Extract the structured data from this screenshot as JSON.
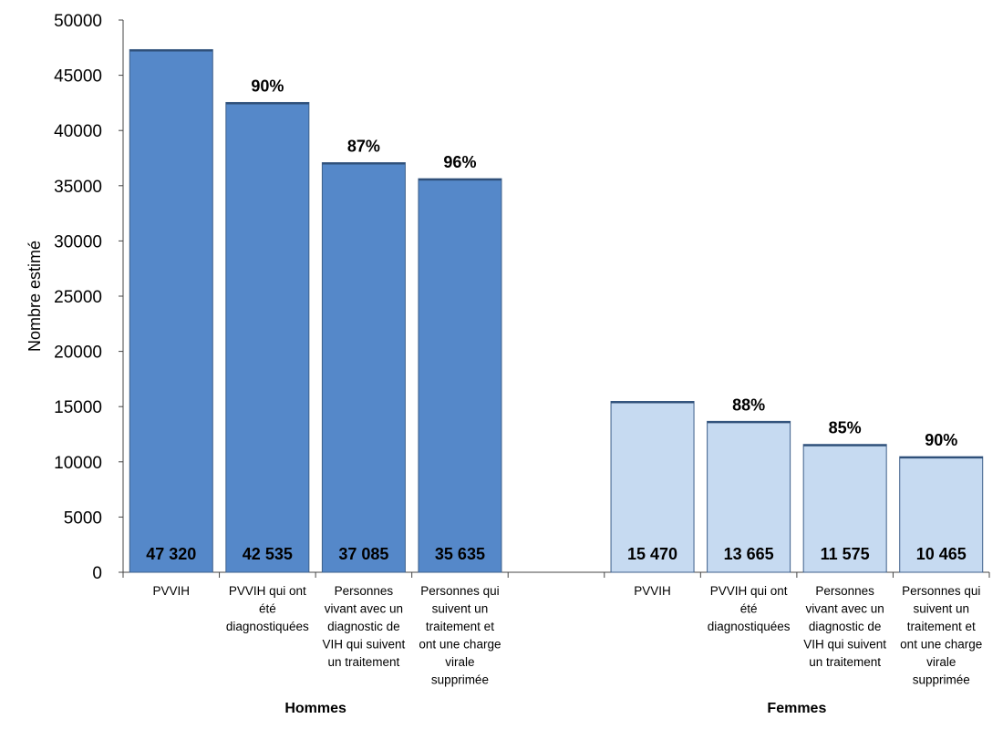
{
  "chart_data": {
    "type": "bar",
    "ylabel": "Nombre estimé",
    "ylim": [
      0,
      50000
    ],
    "yticks": [
      "0",
      "5000",
      "10000",
      "15000",
      "20000",
      "25000",
      "30000",
      "35000",
      "40000",
      "45000",
      "50000"
    ],
    "grid": false,
    "groups": [
      {
        "name": "Hommes",
        "color": "#5588c9",
        "categories": [
          [
            "PVVIH"
          ],
          [
            "PVVIH qui ont",
            "été",
            "diagnostiquées"
          ],
          [
            "Personnes",
            "vivant avec un",
            "diagnostic de",
            "VIH qui suivent",
            "un traitement"
          ],
          [
            "Personnes qui",
            "suivent un",
            "traitement et",
            "ont une charge",
            "virale",
            "supprimée"
          ]
        ],
        "values": [
          47320,
          42535,
          37085,
          35635
        ],
        "value_labels": [
          "47 320",
          "42 535",
          "37 085",
          "35 635"
        ],
        "percent_labels": [
          "",
          "90%",
          "87%",
          "96%"
        ]
      },
      {
        "name": "Femmes",
        "color": "#c6daf1",
        "categories": [
          [
            "PVVIH"
          ],
          [
            "PVVIH qui ont",
            "été",
            "diagnostiquées"
          ],
          [
            "Personnes",
            "vivant avec un",
            "diagnostic de",
            "VIH qui suivent",
            "un traitement"
          ],
          [
            "Personnes qui",
            "suivent un",
            "traitement et",
            "ont une charge",
            "virale",
            "supprimée"
          ]
        ],
        "values": [
          15470,
          13665,
          11575,
          10465
        ],
        "value_labels": [
          "15 470",
          "13 665",
          "11 575",
          "10 465"
        ],
        "percent_labels": [
          "",
          "88%",
          "85%",
          "90%"
        ]
      }
    ]
  }
}
